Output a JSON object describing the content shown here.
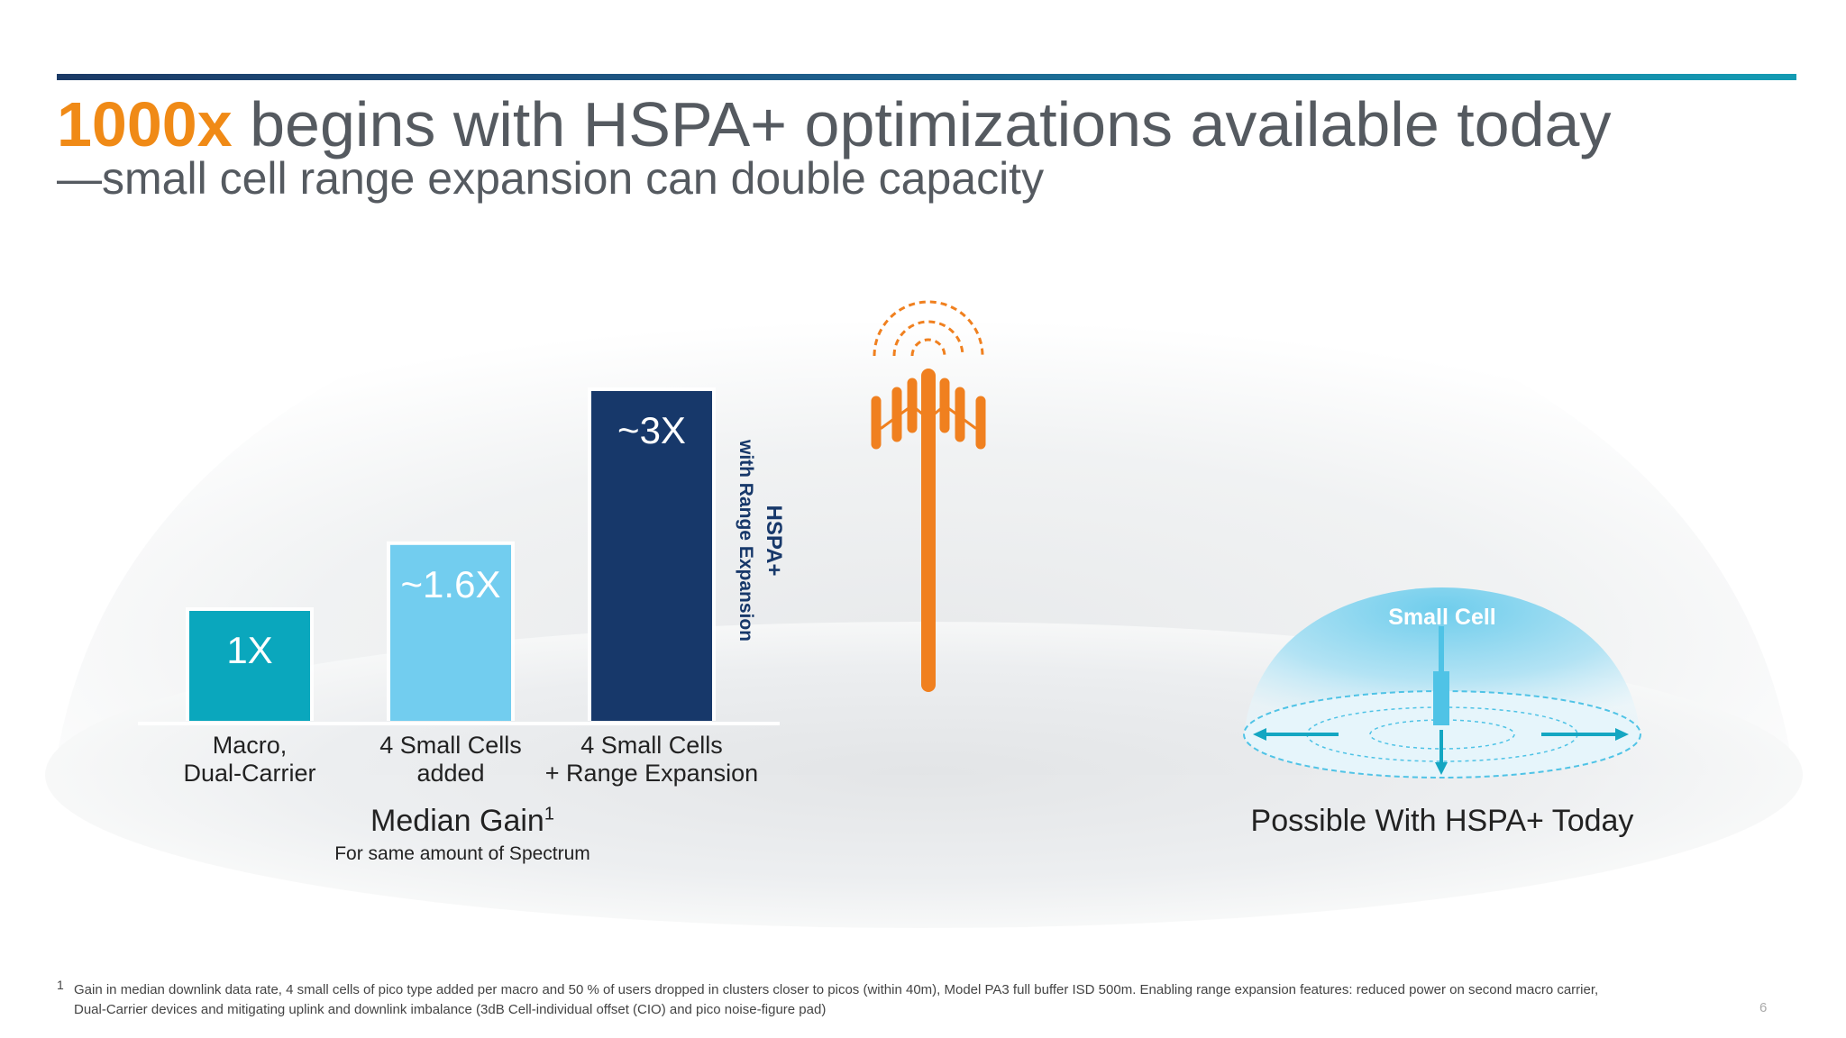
{
  "slide": {
    "title_accent": "1000x",
    "title_rest": " begins with HSPA+ optimizations available today",
    "subtitle": "—small cell range expansion can double capacity",
    "page_number": "6"
  },
  "chart_data": {
    "type": "bar",
    "categories": [
      "Macro, Dual-Carrier",
      "4 Small Cells added",
      "4 Small Cells + Range Expansion"
    ],
    "category_lines": [
      [
        "Macro,",
        "Dual-Carrier"
      ],
      [
        "4 Small Cells",
        "added"
      ],
      [
        "4 Small Cells",
        "+ Range Expansion"
      ]
    ],
    "values": [
      1,
      1.6,
      3
    ],
    "data_labels": [
      "1X",
      "~1.6X",
      "~3X"
    ],
    "colors": [
      "#0aa7bd",
      "#72cdef",
      "#17386a"
    ],
    "title": "Median Gain",
    "title_footnote_mark": "1",
    "subtitle": "For same amount of Spectrum",
    "annotation_line1": "HSPA+",
    "annotation_line2": "with Range Expansion",
    "grid": false
  },
  "illustrations": {
    "macro_tower_icon": "cell-tower-icon",
    "macro_tower_color": "#f0801f",
    "small_cell_label": "Small Cell",
    "small_cell_color": "#4fc3e6",
    "caption": "Possible With HSPA+ Today"
  },
  "footnote": {
    "mark": "1",
    "line1": "Gain in median downlink data rate, 4 small cells of pico type added per macro  and 50 % of users dropped  in clusters closer to picos (within 40m), Model PA3 full buffer ISD 500m. Enabling range expansion  features: reduced power on second macro carrier,",
    "line2": "Dual-Carrier devices and  mitigating uplink and downlink imbalance (3dB Cell-individual offset (CIO) and pico noise-figure pad)"
  }
}
